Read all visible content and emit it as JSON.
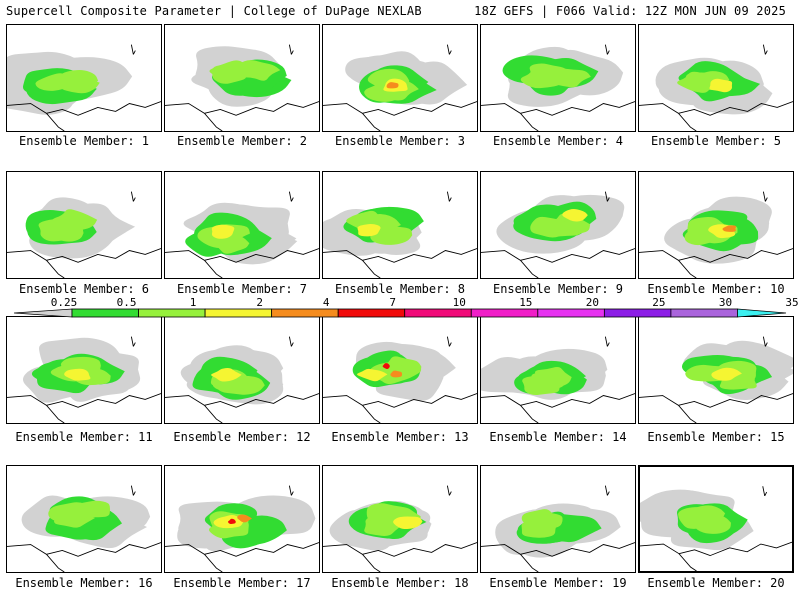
{
  "header": {
    "left": "Supercell Composite Parameter | College of DuPage NEXLAB",
    "right": "18Z GEFS | F066 Valid: 12Z MON JUN 09 2025"
  },
  "colors": {
    "background": "#ffffff",
    "panel_border": "#000000",
    "map_lines": "#000000"
  },
  "chart_data": {
    "type": "heatmap",
    "title": "Supercell Composite Parameter",
    "source": "College of DuPage NEXLAB",
    "model": "18Z GEFS",
    "forecast_hour": "F066",
    "valid": "12Z MON JUN 09 2025",
    "colorbar": {
      "tick_labels": [
        "0.25",
        "0.5",
        "1",
        "2",
        "4",
        "7",
        "10",
        "15",
        "20",
        "25",
        "30",
        "35"
      ],
      "bins": [
        {
          "min": 0.25,
          "max": 0.5,
          "color": "#d2d2d2"
        },
        {
          "min": 0.5,
          "max": 1,
          "color": "#32dc32"
        },
        {
          "min": 1,
          "max": 2,
          "color": "#96f03c"
        },
        {
          "min": 2,
          "max": 4,
          "color": "#f5f532"
        },
        {
          "min": 4,
          "max": 7,
          "color": "#f58c1e"
        },
        {
          "min": 7,
          "max": 10,
          "color": "#f00a0a"
        },
        {
          "min": 10,
          "max": 15,
          "color": "#f00a78"
        },
        {
          "min": 15,
          "max": 20,
          "color": "#f01ec8"
        },
        {
          "min": 20,
          "max": 25,
          "color": "#e632f0"
        },
        {
          "min": 25,
          "max": 30,
          "color": "#8c1ee6"
        },
        {
          "min": 30,
          "max": 35,
          "color": "#aa64dc"
        },
        {
          "min": 35,
          "max": null,
          "color": "#3cf0f0"
        }
      ]
    },
    "panels": [
      {
        "member": 1,
        "label": "Ensemble Member: 1",
        "max_value": 2
      },
      {
        "member": 2,
        "label": "Ensemble Member: 2",
        "max_value": 2
      },
      {
        "member": 3,
        "label": "Ensemble Member: 3",
        "max_value": 7
      },
      {
        "member": 4,
        "label": "Ensemble Member: 4",
        "max_value": 2
      },
      {
        "member": 5,
        "label": "Ensemble Member: 5",
        "max_value": 4
      },
      {
        "member": 6,
        "label": "Ensemble Member: 6",
        "max_value": 2
      },
      {
        "member": 7,
        "label": "Ensemble Member: 7",
        "max_value": 4
      },
      {
        "member": 8,
        "label": "Ensemble Member: 8",
        "max_value": 4
      },
      {
        "member": 9,
        "label": "Ensemble Member: 9",
        "max_value": 4
      },
      {
        "member": 10,
        "label": "Ensemble Member: 10",
        "max_value": 7
      },
      {
        "member": 11,
        "label": "Ensemble Member: 11",
        "max_value": 4
      },
      {
        "member": 12,
        "label": "Ensemble Member: 12",
        "max_value": 4
      },
      {
        "member": 13,
        "label": "Ensemble Member: 13",
        "max_value": 10
      },
      {
        "member": 14,
        "label": "Ensemble Member: 14",
        "max_value": 2
      },
      {
        "member": 15,
        "label": "Ensemble Member: 15",
        "max_value": 4
      },
      {
        "member": 16,
        "label": "Ensemble Member: 16",
        "max_value": 2
      },
      {
        "member": 17,
        "label": "Ensemble Member: 17",
        "max_value": 10
      },
      {
        "member": 18,
        "label": "Ensemble Member: 18",
        "max_value": 4
      },
      {
        "member": 19,
        "label": "Ensemble Member: 19",
        "max_value": 2
      },
      {
        "member": 20,
        "label": "Ensemble Member: 20",
        "max_value": 2,
        "selected": true
      }
    ]
  }
}
